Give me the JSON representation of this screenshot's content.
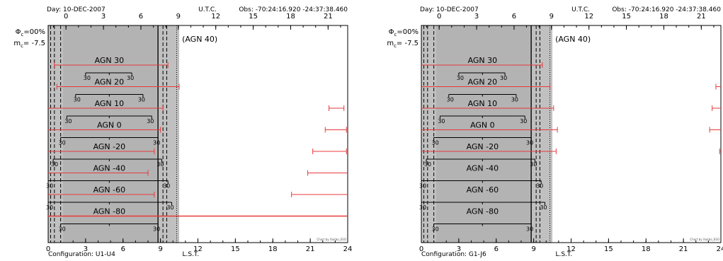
{
  "chart_data": [
    {
      "type": "timeline",
      "day_label": "Day: 10-DEC-2007",
      "utc_label": "U.T.C.",
      "obs_label": "Obs: -70:24:16.920 -24:37:38.460",
      "phase_label": "Φ",
      "phase_sub": "c",
      "phase_value": "=00%",
      "mag_label": "m",
      "mag_sub": "c",
      "mag_value": "= -7.5",
      "object_label": "(AGN 40)",
      "xlabel": "L.S.T.",
      "configuration": "Configuration: U1-U4",
      "credit": "Chart by Xairbo_ESO",
      "xlim": [
        0,
        24
      ],
      "lst_ticks": [
        "0",
        "3",
        "6",
        "9",
        "12",
        "15",
        "18",
        "21",
        "24"
      ],
      "utc_ticks": [
        "0",
        "3",
        "6",
        "9",
        "12",
        "15",
        "18",
        "21"
      ],
      "night_lst": [
        0,
        10.5
      ],
      "dark_lst": [
        1.2,
        8.7
      ],
      "twilight_lines_lst": [
        0.2,
        0.5,
        1.0,
        8.8,
        9.2,
        9.5,
        10.3
      ],
      "targets": [
        {
          "label": "AGN 30",
          "bracket": [
            3.0,
            6.7
          ],
          "left_lbl": "30",
          "right_lbl": "30",
          "red_segments": [
            [
              0.5,
              9.6
            ]
          ]
        },
        {
          "label": "AGN 20",
          "bracket": [
            2.2,
            7.6
          ],
          "left_lbl": "30",
          "right_lbl": "30",
          "red_segments": [
            [
              0.7,
              10.5
            ]
          ]
        },
        {
          "label": "AGN 10",
          "bracket": [
            1.5,
            8.3
          ],
          "left_lbl": "30",
          "right_lbl": "30",
          "red_segments": [
            [
              0.0,
              9.2
            ],
            [
              22.5,
              23.7
            ]
          ]
        },
        {
          "label": "AGN 0",
          "bracket": [
            1.0,
            8.8
          ],
          "left_lbl": "30",
          "right_lbl": "30",
          "red_segments": [
            [
              0.0,
              9.0
            ],
            [
              22.2,
              23.9
            ]
          ]
        },
        {
          "label": "AGN -20",
          "bracket": [
            0.4,
            9.1
          ],
          "left_lbl": "30",
          "right_lbl": "30",
          "red_segments": [
            [
              0.0,
              8.5
            ],
            [
              21.2,
              23.9
            ]
          ]
        },
        {
          "label": "AGN -40",
          "bracket": [
            0.0,
            9.6
          ],
          "left_lbl": "30",
          "right_lbl": "30",
          "red_segments": [
            [
              0.0,
              8.0
            ],
            [
              20.8,
              24.0
            ]
          ]
        },
        {
          "label": "AGN -60",
          "bracket": [
            0.0,
            9.9
          ],
          "left_lbl": "30",
          "right_lbl": "30",
          "red_segments": [
            [
              0.0,
              8.5
            ],
            [
              19.5,
              24.0
            ]
          ]
        },
        {
          "label": "AGN -80",
          "bracket": [
            1.0,
            8.8
          ],
          "left_lbl": "30",
          "right_lbl": "30",
          "red_segments": [
            [
              0.0,
              24.0
            ]
          ]
        }
      ]
    },
    {
      "type": "timeline",
      "day_label": "Day: 10-DEC-2007",
      "utc_label": "U.T.C.",
      "obs_label": "Obs: -70:24:16.920 -24:37:38.460",
      "phase_label": "Φ",
      "phase_sub": "c",
      "phase_value": "=00%",
      "mag_label": "m",
      "mag_sub": "c",
      "mag_value": "= -7.5",
      "object_label": "(AGN 40)",
      "xlabel": "L.S.T.",
      "configuration": "Configuration: G1-J6",
      "credit": "Chart by Xairbo_ESO",
      "xlim": [
        0,
        24
      ],
      "lst_ticks": [
        "0",
        "3",
        "6",
        "9",
        "12",
        "15",
        "18",
        "21",
        "24"
      ],
      "utc_ticks": [
        "0",
        "3",
        "6",
        "9",
        "12",
        "15",
        "18",
        "21"
      ],
      "night_lst": [
        0,
        10.5
      ],
      "dark_lst": [
        1.2,
        8.7
      ],
      "twilight_lines_lst": [
        0.2,
        0.5,
        1.0,
        8.8,
        9.2,
        9.5,
        10.3
      ],
      "targets": [
        {
          "label": "AGN 30",
          "bracket": [
            3.0,
            6.7
          ],
          "left_lbl": "30",
          "right_lbl": "30",
          "red_segments": [
            [
              0.0,
              9.7
            ]
          ]
        },
        {
          "label": "AGN 20",
          "bracket": [
            2.2,
            7.6
          ],
          "left_lbl": "30",
          "right_lbl": "30",
          "red_segments": [
            [
              0.0,
              10.3
            ],
            [
              23.6,
              24.0
            ]
          ]
        },
        {
          "label": "AGN 10",
          "bracket": [
            1.5,
            8.3
          ],
          "left_lbl": "30",
          "right_lbl": "30",
          "red_segments": [
            [
              0.0,
              10.6
            ],
            [
              23.3,
              24.0
            ]
          ]
        },
        {
          "label": "AGN 0",
          "bracket": [
            1.0,
            8.8
          ],
          "left_lbl": "30",
          "right_lbl": "30",
          "red_segments": [
            [
              0.0,
              10.9
            ],
            [
              23.1,
              24.0
            ]
          ]
        },
        {
          "label": "AGN -20",
          "bracket": [
            0.4,
            9.1
          ],
          "left_lbl": "30",
          "right_lbl": "30",
          "red_segments": [
            [
              0.0,
              10.8
            ],
            [
              23.9,
              24.0
            ]
          ]
        },
        {
          "label": "AGN -40",
          "bracket": [
            0.0,
            9.6
          ],
          "left_lbl": "30",
          "right_lbl": "30",
          "red_segments": []
        },
        {
          "label": "AGN -60",
          "bracket": [
            0.0,
            9.9
          ],
          "left_lbl": "30",
          "right_lbl": "30",
          "red_segments": []
        },
        {
          "label": "AGN -80",
          "bracket": [
            1.0,
            8.8
          ],
          "left_lbl": "30",
          "right_lbl": "30",
          "red_segments": []
        }
      ]
    }
  ],
  "colors": {
    "night_band": "#c0c0c0",
    "dark_band": "#b3b3b3",
    "red_segment": "#e83a3a",
    "frame": "#000000"
  }
}
